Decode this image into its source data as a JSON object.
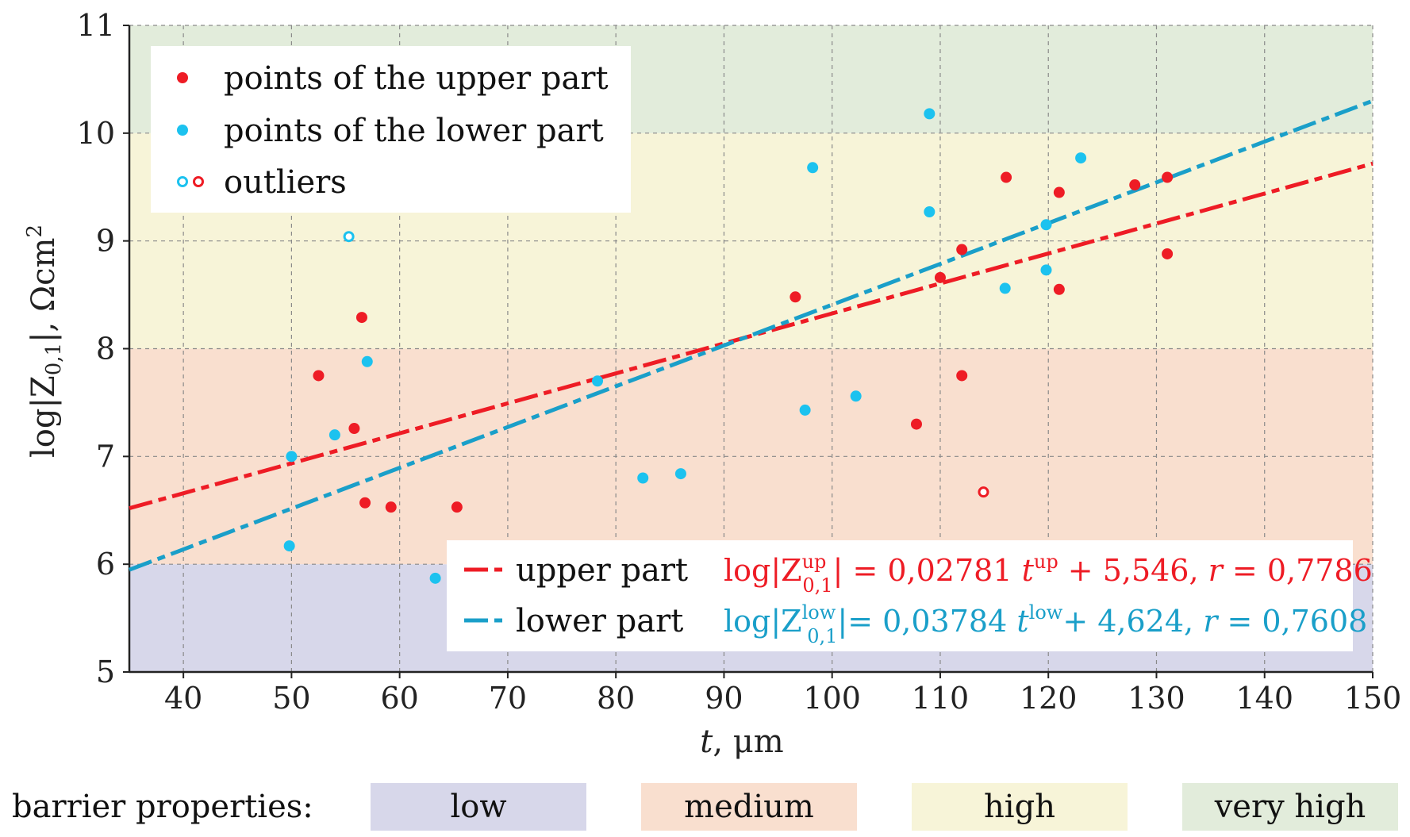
{
  "chart_data": {
    "type": "scatter",
    "xlabel_var": "t",
    "xlabel_unit": ", μm",
    "ylabel": "log|Z0,1|, Ωcm2",
    "ylabel_parts": {
      "log": "log|Z",
      "sub": "0,1",
      "bar": "|, Ωcm",
      "sup": "2"
    },
    "xlim": [
      35,
      150
    ],
    "ylim": [
      5,
      11
    ],
    "xticks": [
      "40",
      "50",
      "60",
      "70",
      "80",
      "90",
      "100",
      "110",
      "120",
      "130",
      "140",
      "150"
    ],
    "yticks": [
      "5",
      "6",
      "7",
      "8",
      "9",
      "10",
      "11"
    ],
    "grid": true,
    "bands": [
      {
        "name": "low",
        "y0": 5,
        "y1": 6,
        "color": "#d7d7ea"
      },
      {
        "name": "medium",
        "y0": 6,
        "y1": 8,
        "color": "#f9dfcf"
      },
      {
        "name": "high",
        "y0": 8,
        "y1": 10,
        "color": "#f7f4d8"
      },
      {
        "name": "very high",
        "y0": 10,
        "y1": 11,
        "color": "#e2ecdb"
      }
    ],
    "band_legend_title": "barrier properties:",
    "colors": {
      "upper": "#ee1c25",
      "lower": "#1cc2ef",
      "lower_line": "#1a9fc9"
    },
    "series": [
      {
        "name": "points of the upper part",
        "color": "#ee1c25",
        "points": [
          [
            52.5,
            7.75
          ],
          [
            55.8,
            7.26
          ],
          [
            56.5,
            8.29
          ],
          [
            56.8,
            6.57
          ],
          [
            59.2,
            6.53
          ],
          [
            65.3,
            6.53
          ],
          [
            96.6,
            8.48
          ],
          [
            107.8,
            7.3
          ],
          [
            110.0,
            8.66
          ],
          [
            112.0,
            8.92
          ],
          [
            112.0,
            7.75
          ],
          [
            116.1,
            9.59
          ],
          [
            121.0,
            9.45
          ],
          [
            121.0,
            8.55
          ],
          [
            128.0,
            9.52
          ],
          [
            131.0,
            9.59
          ],
          [
            131.0,
            8.88
          ]
        ]
      },
      {
        "name": "points of the lower part",
        "color": "#1cc2ef",
        "points": [
          [
            50.0,
            7.0
          ],
          [
            49.8,
            6.17
          ],
          [
            54.0,
            7.2
          ],
          [
            57.0,
            7.88
          ],
          [
            63.3,
            5.87
          ],
          [
            78.3,
            7.7
          ],
          [
            82.5,
            6.8
          ],
          [
            86.0,
            6.84
          ],
          [
            97.5,
            7.43
          ],
          [
            98.2,
            9.68
          ],
          [
            102.2,
            7.56
          ],
          [
            109.0,
            10.18
          ],
          [
            109.0,
            9.27
          ],
          [
            116.0,
            8.56
          ],
          [
            119.8,
            9.15
          ],
          [
            119.8,
            8.73
          ],
          [
            123.0,
            9.77
          ]
        ]
      },
      {
        "name": "outliers",
        "points_lower": [
          [
            55.3,
            9.04
          ]
        ],
        "points_upper": [
          [
            114.0,
            6.67
          ]
        ]
      }
    ],
    "fits": [
      {
        "name": "upper part",
        "slope": 0.02781,
        "intercept": 5.546,
        "r": 0.7786,
        "color": "#ee1c25",
        "eq": {
          "a": "log|Z",
          "sup": "up",
          "sub": "0,1",
          "b": "| = 0,02781 ",
          "t": "t",
          "tsup": "up",
          "c": " + 5,546, ",
          "r": "r",
          "d": " = 0,7786"
        }
      },
      {
        "name": "lower part",
        "slope": 0.03784,
        "intercept": 4.624,
        "r": 0.7608,
        "color": "#1a9fc9",
        "eq": {
          "a": "log|Z",
          "sup": "low",
          "sub": "0,1",
          "b": "|= 0,03784 ",
          "t": "t",
          "tsup": "low",
          "c": "+ 4,624, ",
          "r": "r",
          "d": " = 0,7608"
        }
      }
    ]
  }
}
